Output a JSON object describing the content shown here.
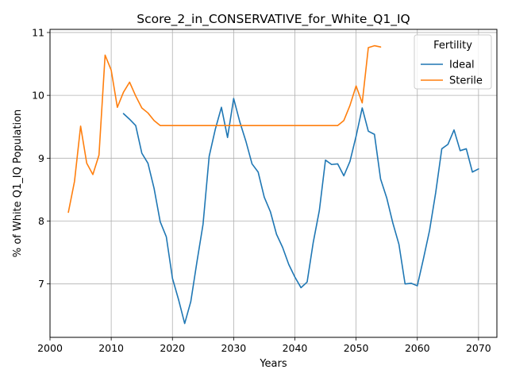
{
  "chart_data": {
    "type": "line",
    "title": "Score_2_in_CONSERVATIVE_for_White_Q1_IQ",
    "xlabel": "Years",
    "ylabel": "% of White Q1_IQ Population",
    "xlim": [
      2000,
      2073
    ],
    "ylim": [
      6.15,
      11.05
    ],
    "x_ticks": [
      2000,
      2010,
      2020,
      2030,
      2040,
      2050,
      2060,
      2070
    ],
    "y_ticks": [
      7,
      8,
      9,
      10,
      11
    ],
    "grid": true,
    "legend": {
      "title": "Fertility",
      "placement": "top-right"
    },
    "series": [
      {
        "name": "Ideal",
        "color": "#1f77b4",
        "x": [
          2012,
          2013,
          2014,
          2015,
          2016,
          2017,
          2018,
          2019,
          2020,
          2021,
          2022,
          2023,
          2024,
          2025,
          2026,
          2027,
          2028,
          2029,
          2030,
          2031,
          2032,
          2033,
          2034,
          2035,
          2036,
          2037,
          2038,
          2039,
          2040,
          2041,
          2042,
          2043,
          2044,
          2045,
          2046,
          2047,
          2048,
          2049,
          2050,
          2051,
          2052,
          2053,
          2054,
          2055,
          2056,
          2057,
          2058,
          2059,
          2060,
          2061,
          2062,
          2063,
          2064,
          2065,
          2066,
          2067,
          2068,
          2069,
          2070
        ],
        "y": [
          9.71,
          9.62,
          9.52,
          9.08,
          8.92,
          8.52,
          7.99,
          7.75,
          7.09,
          6.75,
          6.37,
          6.72,
          7.35,
          7.95,
          9.03,
          9.46,
          9.81,
          9.33,
          9.95,
          9.58,
          9.27,
          8.91,
          8.78,
          8.38,
          8.15,
          7.79,
          7.58,
          7.31,
          7.11,
          6.94,
          7.03,
          7.66,
          8.17,
          8.97,
          8.9,
          8.91,
          8.72,
          8.95,
          9.35,
          9.8,
          9.43,
          9.38,
          8.67,
          8.37,
          7.97,
          7.63,
          7.0,
          7.01,
          6.97,
          7.4,
          7.85,
          8.45,
          9.15,
          9.22,
          9.45,
          9.12,
          9.15,
          8.78,
          8.83
        ]
      },
      {
        "name": "Sterile",
        "color": "#ff7f0e",
        "x": [
          2003,
          2004,
          2005,
          2006,
          2007,
          2008,
          2009,
          2010,
          2011,
          2012,
          2013,
          2014,
          2015,
          2016,
          2017,
          2018,
          2019,
          2020,
          2021,
          2022,
          2023,
          2024,
          2025,
          2026,
          2027,
          2028,
          2029,
          2030,
          2031,
          2032,
          2033,
          2034,
          2035,
          2036,
          2037,
          2038,
          2039,
          2040,
          2041,
          2042,
          2043,
          2044,
          2045,
          2046,
          2047,
          2048,
          2049,
          2050,
          2051,
          2052,
          2053,
          2054
        ],
        "y": [
          8.14,
          8.63,
          9.51,
          8.92,
          8.74,
          9.05,
          10.64,
          10.4,
          9.81,
          10.05,
          10.21,
          9.99,
          9.8,
          9.72,
          9.6,
          9.52,
          9.52,
          9.52,
          9.52,
          9.52,
          9.52,
          9.52,
          9.52,
          9.52,
          9.52,
          9.52,
          9.52,
          9.52,
          9.52,
          9.52,
          9.52,
          9.52,
          9.52,
          9.52,
          9.52,
          9.52,
          9.52,
          9.52,
          9.52,
          9.52,
          9.52,
          9.52,
          9.52,
          9.52,
          9.52,
          9.6,
          9.84,
          10.15,
          9.88,
          10.76,
          10.79,
          10.77
        ]
      }
    ]
  }
}
